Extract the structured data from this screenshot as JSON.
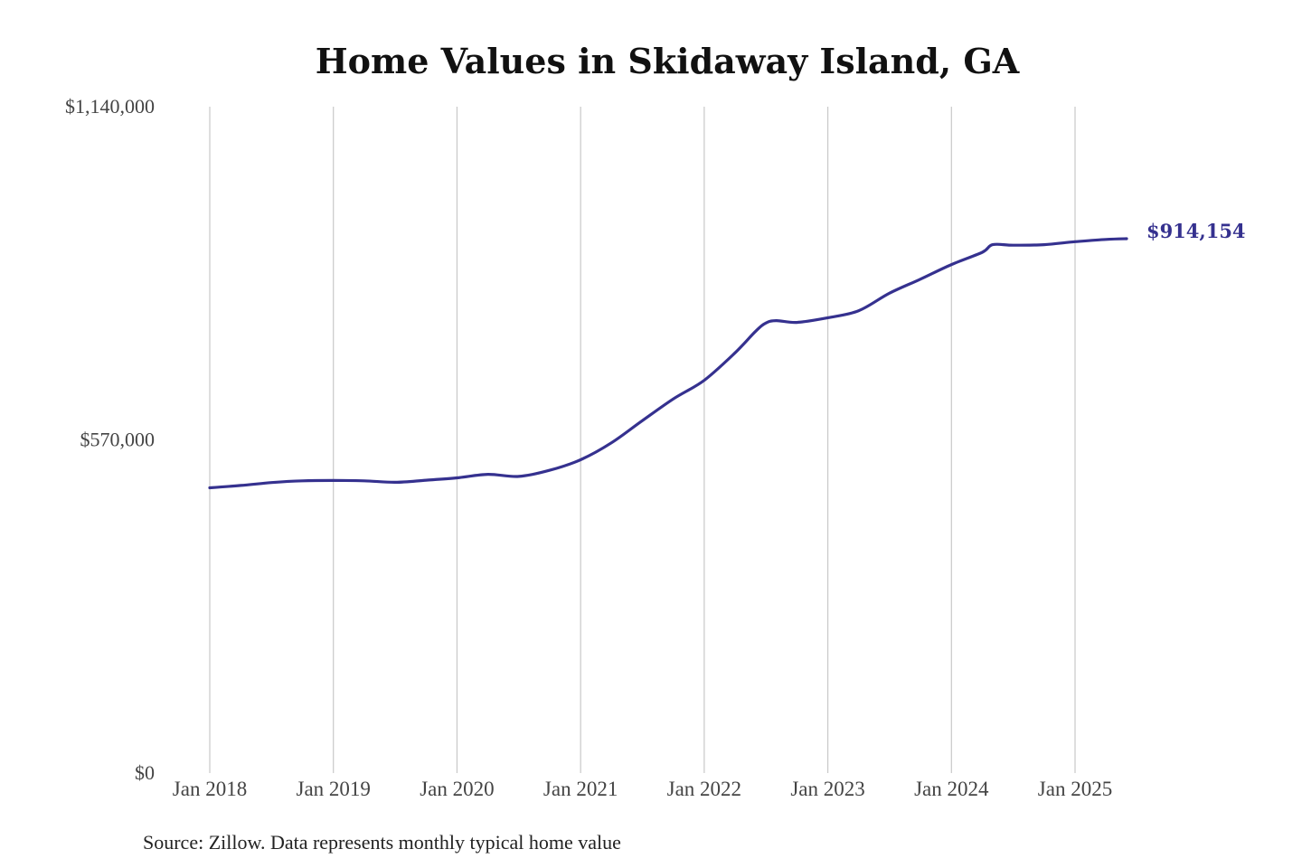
{
  "chart_data": {
    "type": "line",
    "title": "Home Values in Skidaway Island, GA",
    "source": "Source: Zillow. Data represents monthly typical home value",
    "ylim": [
      0,
      1140000
    ],
    "y_ticks": [
      {
        "value": 0,
        "label": "$0"
      },
      {
        "value": 570000,
        "label": "$570,000"
      },
      {
        "value": 1140000,
        "label": "$1,140,000"
      }
    ],
    "x_ticks": [
      {
        "value": "2018-01",
        "label": "Jan 2018"
      },
      {
        "value": "2019-01",
        "label": "Jan 2019"
      },
      {
        "value": "2020-01",
        "label": "Jan 2020"
      },
      {
        "value": "2021-01",
        "label": "Jan 2021"
      },
      {
        "value": "2022-01",
        "label": "Jan 2022"
      },
      {
        "value": "2023-01",
        "label": "Jan 2023"
      },
      {
        "value": "2024-01",
        "label": "Jan 2024"
      },
      {
        "value": "2025-01",
        "label": "Jan 2025"
      }
    ],
    "grid": "vertical",
    "series": [
      {
        "color": "#35318f",
        "end_label": "$914,154",
        "points": [
          {
            "x": "2018-01",
            "y": 488000
          },
          {
            "x": "2018-04",
            "y": 492000
          },
          {
            "x": "2018-07",
            "y": 497000
          },
          {
            "x": "2018-10",
            "y": 500000
          },
          {
            "x": "2019-01",
            "y": 500500
          },
          {
            "x": "2019-04",
            "y": 500000
          },
          {
            "x": "2019-07",
            "y": 497500
          },
          {
            "x": "2019-10",
            "y": 501000
          },
          {
            "x": "2020-01",
            "y": 505000
          },
          {
            "x": "2020-04",
            "y": 511000
          },
          {
            "x": "2020-07",
            "y": 507500
          },
          {
            "x": "2020-10",
            "y": 518000
          },
          {
            "x": "2021-01",
            "y": 536000
          },
          {
            "x": "2021-04",
            "y": 565000
          },
          {
            "x": "2021-07",
            "y": 603000
          },
          {
            "x": "2021-10",
            "y": 640000
          },
          {
            "x": "2022-01",
            "y": 672000
          },
          {
            "x": "2022-04",
            "y": 719000
          },
          {
            "x": "2022-06",
            "y": 756000
          },
          {
            "x": "2022-07",
            "y": 770000
          },
          {
            "x": "2022-08",
            "y": 774000
          },
          {
            "x": "2022-10",
            "y": 771000
          },
          {
            "x": "2023-01",
            "y": 779000
          },
          {
            "x": "2023-04",
            "y": 791000
          },
          {
            "x": "2023-07",
            "y": 821000
          },
          {
            "x": "2023-10",
            "y": 845000
          },
          {
            "x": "2024-01",
            "y": 870000
          },
          {
            "x": "2024-04",
            "y": 891000
          },
          {
            "x": "2024-05",
            "y": 904000
          },
          {
            "x": "2024-07",
            "y": 903000
          },
          {
            "x": "2024-10",
            "y": 904000
          },
          {
            "x": "2025-01",
            "y": 909000
          },
          {
            "x": "2025-04",
            "y": 913000
          },
          {
            "x": "2025-06",
            "y": 914154
          }
        ]
      }
    ]
  }
}
